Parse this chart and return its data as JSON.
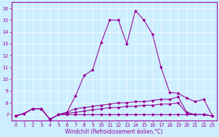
{
  "xlabel": "Windchill (Refroidissement éolien,°C)",
  "bg_color": "#cceeff",
  "line_color": "#990099",
  "xlim": [
    -0.5,
    23.5
  ],
  "ylim": [
    6.5,
    16.5
  ],
  "yticks": [
    7,
    8,
    9,
    10,
    11,
    12,
    13,
    14,
    15,
    16
  ],
  "xticks": [
    0,
    1,
    2,
    3,
    4,
    5,
    6,
    7,
    8,
    9,
    10,
    11,
    12,
    13,
    14,
    15,
    16,
    17,
    18,
    19,
    20,
    21,
    22,
    23
  ],
  "series": [
    {
      "x": [
        0,
        1,
        2,
        3,
        4,
        5,
        6,
        7,
        8,
        9,
        10,
        11,
        12,
        13,
        14,
        15,
        16,
        17,
        18,
        19,
        20,
        21,
        22,
        23
      ],
      "y": [
        6.9,
        7.1,
        7.5,
        7.5,
        6.6,
        7.0,
        7.2,
        8.6,
        10.3,
        10.8,
        13.1,
        15.0,
        15.0,
        13.0,
        15.8,
        15.0,
        13.8,
        11.0,
        8.9,
        8.8,
        8.4,
        8.1,
        8.3,
        6.9
      ],
      "ls": "-"
    },
    {
      "x": [
        0,
        1,
        2,
        3,
        4,
        5,
        6,
        7,
        8,
        9,
        10,
        11,
        12,
        13,
        14,
        15,
        16,
        17,
        18,
        19,
        20,
        21,
        22,
        23
      ],
      "y": [
        6.9,
        7.1,
        7.5,
        7.5,
        6.6,
        7.0,
        7.2,
        7.5,
        7.6,
        7.7,
        7.8,
        7.9,
        8.0,
        8.0,
        8.1,
        8.1,
        8.2,
        8.3,
        8.3,
        8.5,
        7.2,
        7.0,
        7.0,
        6.9
      ],
      "ls": "-"
    },
    {
      "x": [
        0,
        1,
        2,
        3,
        4,
        5,
        6,
        7,
        8,
        9,
        10,
        11,
        12,
        13,
        14,
        15,
        16,
        17,
        18,
        19,
        20,
        21,
        22,
        23
      ],
      "y": [
        6.9,
        7.1,
        7.5,
        7.5,
        6.6,
        7.0,
        7.0,
        7.0,
        7.0,
        7.0,
        7.0,
        7.0,
        7.0,
        7.0,
        7.0,
        7.0,
        7.0,
        7.0,
        7.0,
        7.0,
        7.0,
        7.0,
        7.0,
        6.9
      ],
      "ls": "-"
    },
    {
      "x": [
        0,
        1,
        2,
        3,
        4,
        5,
        6,
        7,
        8,
        9,
        10,
        11,
        12,
        13,
        14,
        15,
        16,
        17,
        18,
        19,
        20,
        21,
        22,
        23
      ],
      "y": [
        6.9,
        7.1,
        7.5,
        7.5,
        6.6,
        7.0,
        7.1,
        7.2,
        7.3,
        7.4,
        7.5,
        7.6,
        7.6,
        7.7,
        7.7,
        7.8,
        7.8,
        7.9,
        7.9,
        8.0,
        7.1,
        7.0,
        7.0,
        6.9
      ],
      "ls": "-"
    }
  ],
  "marker": "D",
  "markersize": 2.0,
  "linewidth": 0.8,
  "tick_fontsize": 5.0,
  "xlabel_fontsize": 5.5
}
